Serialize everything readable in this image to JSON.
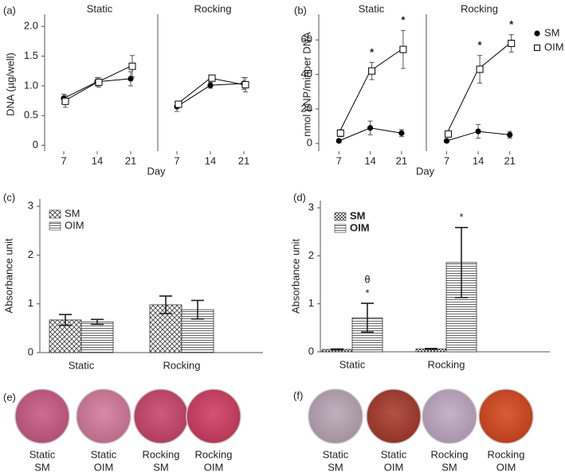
{
  "chart_data": [
    {
      "type": "line",
      "panel": "(a)",
      "ylabel": "DNA (µg/well)",
      "xlabel": "Day",
      "x": [
        7,
        14,
        21
      ],
      "xlim": [
        3,
        26
      ],
      "xticks": [
        7,
        14,
        21
      ],
      "ylim": [
        -0.1,
        2.15
      ],
      "yticks": [
        0,
        0.5,
        {
          "value": 1,
          "label": "1.0"
        },
        1.5,
        {
          "value": 2,
          "label": "2.0"
        }
      ],
      "series": [
        {
          "marker": "circle",
          "color": "#000000"
        },
        {
          "marker": "square",
          "color": "#000000"
        }
      ],
      "facets": [
        {
          "title": "Static",
          "values": [
            [
              0.79,
              1.07,
              1.12
            ],
            [
              0.74,
              1.06,
              1.33
            ]
          ],
          "errors": [
            [
              0.07,
              0.07,
              0.12
            ],
            [
              0.1,
              0.08,
              0.18
            ]
          ]
        },
        {
          "title": "Rocking",
          "values": [
            [
              0.65,
              1.01,
              1.04
            ],
            [
              0.69,
              1.13,
              1.02
            ]
          ],
          "errors": [
            [
              0.08,
              0.05,
              0.1
            ],
            [
              0.05,
              0.03,
              0.12
            ]
          ]
        }
      ]
    },
    {
      "type": "line",
      "panel": "(b)",
      "ylabel": "nmol pNP/minper DNA",
      "xlabel": "Day",
      "x": [
        7,
        14,
        21
      ],
      "xlim": [
        2.5,
        26
      ],
      "xticks": [
        7,
        14,
        21
      ],
      "ylim": [
        -4.5,
        73
      ],
      "yticks": [
        0,
        20,
        40,
        60
      ],
      "series": [
        {
          "name": "SM",
          "marker": "circle",
          "color": "#000000"
        },
        {
          "name": "OIM",
          "marker": "square",
          "color": "#000000"
        }
      ],
      "legend": "right",
      "facets": [
        {
          "title": "Static",
          "values": [
            [
              1.5,
              9,
              6
            ],
            [
              6,
              42,
              54.5
            ]
          ],
          "errors": [
            [
              1,
              4,
              2
            ],
            [
              2,
              5,
              11
            ]
          ],
          "annotations": [
            [
              null,
              null,
              null
            ],
            [
              null,
              [
                "*"
              ],
              [
                "*"
              ]
            ]
          ]
        },
        {
          "title": "Rocking",
          "values": [
            [
              1.5,
              7,
              5
            ],
            [
              5.5,
              43,
              58
            ]
          ],
          "errors": [
            [
              1,
              4,
              2
            ],
            [
              1.5,
              8,
              5
            ]
          ],
          "annotations": [
            [
              null,
              null,
              null
            ],
            [
              null,
              [
                "*"
              ],
              [
                "*"
              ]
            ]
          ]
        }
      ]
    },
    {
      "type": "bar",
      "panel": "(c)",
      "ylabel": "Absorbance unit",
      "categories": [
        "Static",
        "Rocking"
      ],
      "ylim": [
        0,
        3.15
      ],
      "yticks": [
        0,
        1,
        2,
        3
      ],
      "legend": "upper left",
      "series": [
        {
          "name": "SM",
          "pattern": "crosshatch",
          "values": [
            0.67,
            0.98
          ],
          "errors": [
            0.11,
            0.18
          ]
        },
        {
          "name": "OIM",
          "pattern": "hlines",
          "values": [
            0.63,
            0.88
          ],
          "errors": [
            0.05,
            0.19
          ]
        }
      ]
    },
    {
      "type": "bar",
      "panel": "(d)",
      "ylabel": "Absorbance unit",
      "categories": [
        "Static",
        "Rocking"
      ],
      "ylim": [
        0,
        3.15
      ],
      "yticks": [
        0,
        1,
        2,
        3
      ],
      "legend": "upper left",
      "series": [
        {
          "name": "SM",
          "pattern": "checker",
          "values": [
            0.05,
            0.06
          ],
          "errors": [
            0.01,
            0.01
          ]
        },
        {
          "name": "OIM",
          "pattern": "hlines",
          "values": [
            0.71,
            1.86
          ],
          "errors": [
            0.3,
            0.73
          ]
        }
      ],
      "annotations": [
        [
          null,
          null
        ],
        [
          [
            "θ",
            "*"
          ],
          [
            "*"
          ]
        ]
      ]
    }
  ],
  "well_images": [
    {
      "panel": "(e)",
      "wells": [
        {
          "label": [
            "Static",
            "SM"
          ],
          "color": "#c75a84"
        },
        {
          "label": [
            "Static",
            "OIM"
          ],
          "color": "#d27a9a"
        },
        {
          "label": [
            "Rocking",
            "SM"
          ],
          "color": "#c8456c"
        },
        {
          "label": [
            "Rocking",
            "OIM"
          ],
          "color": "#cf3d62"
        }
      ]
    },
    {
      "panel": "(f)",
      "wells": [
        {
          "label": [
            "Static",
            "SM"
          ],
          "color": "#b8a6b6"
        },
        {
          "label": [
            "Static",
            "OIM"
          ],
          "color": "#a63a2c"
        },
        {
          "label": [
            "Rocking",
            "SM"
          ],
          "color": "#bea8c2"
        },
        {
          "label": [
            "Rocking",
            "OIM"
          ],
          "color": "#d4471d"
        }
      ]
    }
  ]
}
